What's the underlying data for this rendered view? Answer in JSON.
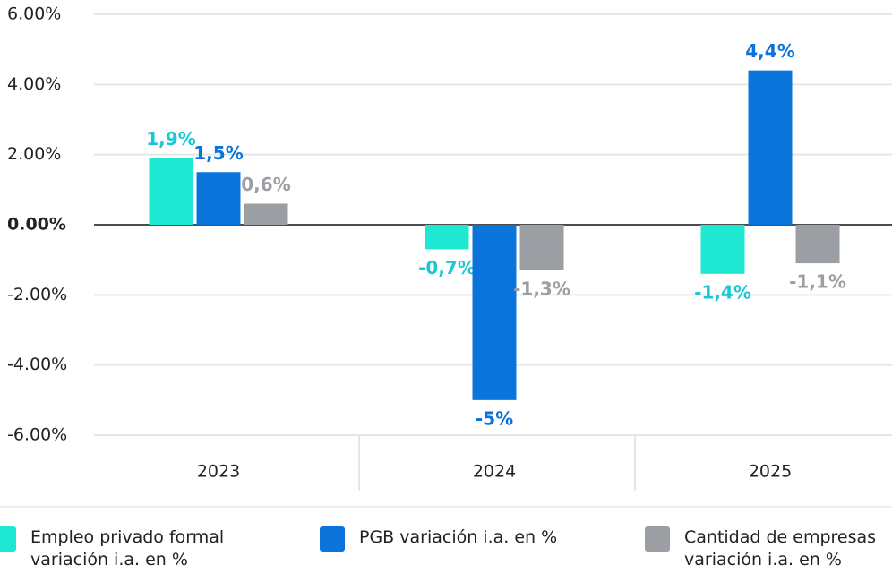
{
  "chart_data": {
    "type": "bar",
    "categories": [
      "2023",
      "2024",
      "2025"
    ],
    "series": [
      {
        "name": "Empleo privado formal variación i.a. en %",
        "color": "#1ee8d2",
        "label_color": "#1bc6d6",
        "values": [
          1.9,
          -0.7,
          -1.4
        ],
        "value_labels": [
          "1,9%",
          "-0,7%",
          "-1,4%"
        ]
      },
      {
        "name": "PGB variación i.a. en %",
        "color": "#0a74da",
        "label_color": "#0a74da",
        "values": [
          1.5,
          -5,
          4.4
        ],
        "value_labels": [
          "1,5%",
          "-5%",
          "4,4%"
        ]
      },
      {
        "name": "Cantidad de empresas variación i.a. en %",
        "color": "#9b9ea3",
        "label_color": "#9b9ea3",
        "values": [
          0.6,
          -1.3,
          -1.1
        ],
        "value_labels": [
          "0,6%",
          "-1,3%",
          "-1,1%"
        ]
      }
    ],
    "ylim": [
      -6,
      6
    ],
    "yticks": [
      {
        "value": -6,
        "label": "-6.00%"
      },
      {
        "value": -4,
        "label": "-4.00%"
      },
      {
        "value": -2,
        "label": "-2.00%"
      },
      {
        "value": 0,
        "label": "0.00%"
      },
      {
        "value": 2,
        "label": "2.00%"
      },
      {
        "value": 4,
        "label": "4.00%"
      },
      {
        "value": 6,
        "label": "6.00%"
      }
    ],
    "grid": true
  }
}
